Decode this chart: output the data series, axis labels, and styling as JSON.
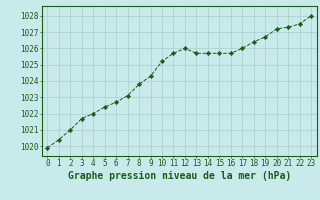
{
  "x": [
    0,
    1,
    2,
    3,
    4,
    5,
    6,
    7,
    8,
    9,
    10,
    11,
    12,
    13,
    14,
    15,
    16,
    17,
    18,
    19,
    20,
    21,
    22,
    23
  ],
  "y": [
    1019.9,
    1020.4,
    1021.0,
    1021.7,
    1022.0,
    1022.4,
    1022.7,
    1023.1,
    1023.8,
    1024.3,
    1025.2,
    1025.7,
    1026.0,
    1025.7,
    1025.7,
    1025.7,
    1025.7,
    1026.0,
    1026.4,
    1026.7,
    1027.2,
    1027.3,
    1027.5,
    1028.0
  ],
  "line_color": "#1a5c1a",
  "marker": "D",
  "marker_size": 2.2,
  "bg_color": "#c8eaea",
  "grid_color": "#aacccc",
  "text_color": "#1a5c1a",
  "title": "Graphe pression niveau de la mer (hPa)",
  "xlabel_ticks": [
    0,
    1,
    2,
    3,
    4,
    5,
    6,
    7,
    8,
    9,
    10,
    11,
    12,
    13,
    14,
    15,
    16,
    17,
    18,
    19,
    20,
    21,
    22,
    23
  ],
  "yticks": [
    1020,
    1021,
    1022,
    1023,
    1024,
    1025,
    1026,
    1027,
    1028
  ],
  "ylim": [
    1019.4,
    1028.6
  ],
  "xlim": [
    -0.5,
    23.5
  ],
  "tick_fontsize": 5.5,
  "title_fontsize": 7,
  "tick_color": "#1a5c1a"
}
